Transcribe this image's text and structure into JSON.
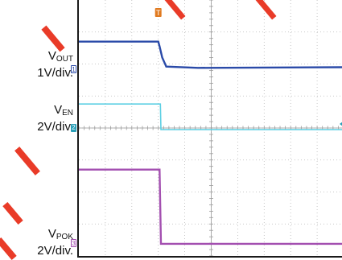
{
  "chart_data": {
    "type": "line",
    "title": "",
    "grid": true,
    "divisions": {
      "x": 10,
      "y": 8
    },
    "trigger_marker": "T",
    "ground_markers": [
      "1",
      "2",
      "3"
    ],
    "series": [
      {
        "name": "VOUT",
        "scale": "1V/div.",
        "color": "#2a4aa8",
        "x": [
          0,
          3.0,
          3.05,
          3.15,
          3.3,
          4.5,
          10
        ],
        "y": [
          6.7,
          6.7,
          6.55,
          6.2,
          5.92,
          5.88,
          5.9
        ]
      },
      {
        "name": "VEN",
        "scale": "2V/div.",
        "color": "#5ccfe3",
        "x": [
          0,
          3.08,
          3.1,
          10
        ],
        "y": [
          4.75,
          4.75,
          3.95,
          3.95
        ]
      },
      {
        "name": "VPOK",
        "scale": "2V/div.",
        "color": "#a34fb0",
        "x": [
          0,
          3.05,
          3.1,
          10
        ],
        "y": [
          2.7,
          2.7,
          0.38,
          0.38
        ]
      }
    ]
  },
  "labels": {
    "vout": {
      "name": "V",
      "sub": "OUT",
      "scale": "1V/div."
    },
    "ven": {
      "name": "V",
      "sub": "EN",
      "scale": "2V/div."
    },
    "vpok": {
      "name": "V",
      "sub": "POK",
      "scale": "2V/div."
    }
  },
  "colors": {
    "grid": "#b8b8b8",
    "frame": "#1a1a1a",
    "trigger": "#e07a20",
    "watermark": "#e8301c"
  }
}
